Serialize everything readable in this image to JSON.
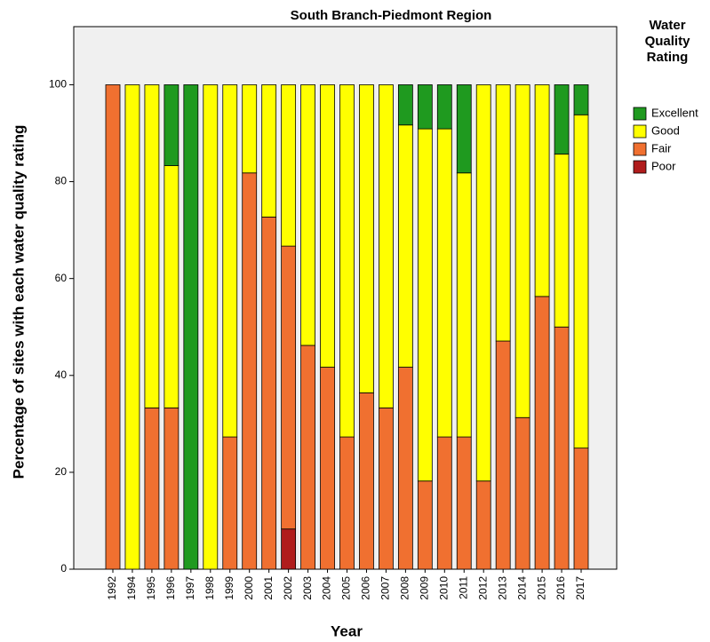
{
  "chart_data": {
    "type": "stacked_bar",
    "title": "South Branch-Piedmont Region",
    "x_label": "Year",
    "y_label": "Percentage of sites with each water quality rating",
    "legend_title": "Water Quality Rating",
    "categories": [
      "1992",
      "1994",
      "1995",
      "1996",
      "1997",
      "1998",
      "1999",
      "2000",
      "2001",
      "2002",
      "2003",
      "2004",
      "2005",
      "2006",
      "2007",
      "2008",
      "2009",
      "2010",
      "2011",
      "2012",
      "2013",
      "2014",
      "2015",
      "2016",
      "2017"
    ],
    "series": [
      {
        "name": "Poor",
        "color": "#b01c1c",
        "values": [
          0,
          0,
          0,
          0,
          0,
          0,
          0,
          0,
          0,
          8.3,
          0,
          0,
          0,
          0,
          0,
          0,
          0,
          0,
          0,
          0,
          0,
          0,
          0,
          0,
          0
        ]
      },
      {
        "name": "Fair",
        "color": "#f07030",
        "values": [
          100,
          0,
          33.3,
          33.3,
          0,
          0,
          27.3,
          81.8,
          72.7,
          58.4,
          46.2,
          41.7,
          27.3,
          36.4,
          33.3,
          41.7,
          18.2,
          27.3,
          27.3,
          18.2,
          47.1,
          31.3,
          56.3,
          50,
          25
        ]
      },
      {
        "name": "Good",
        "color": "#ffff00",
        "values": [
          0,
          100,
          66.7,
          50,
          0,
          100,
          72.7,
          18.2,
          27.3,
          33.3,
          53.8,
          58.3,
          72.7,
          63.6,
          66.7,
          50,
          72.7,
          63.6,
          54.5,
          81.8,
          52.9,
          68.7,
          43.7,
          35.7,
          68.8
        ]
      },
      {
        "name": "Excellent",
        "color": "#1f9a1f",
        "values": [
          0,
          0,
          0,
          16.7,
          100,
          0,
          0,
          0,
          0,
          0,
          0,
          0,
          0,
          0,
          0,
          8.3,
          9.1,
          9.1,
          18.2,
          0,
          0,
          0,
          0,
          14.3,
          6.2
        ]
      }
    ],
    "ylim": [
      0,
      112
    ],
    "yticks": [
      0,
      20,
      40,
      60,
      80,
      100
    ],
    "legend_position": "right"
  }
}
